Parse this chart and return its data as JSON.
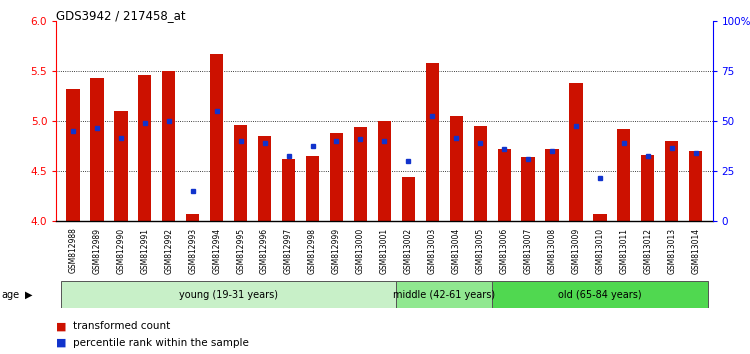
{
  "title": "GDS3942 / 217458_at",
  "samples": [
    "GSM812988",
    "GSM812989",
    "GSM812990",
    "GSM812991",
    "GSM812992",
    "GSM812993",
    "GSM812994",
    "GSM812995",
    "GSM812996",
    "GSM812997",
    "GSM812998",
    "GSM812999",
    "GSM813000",
    "GSM813001",
    "GSM813002",
    "GSM813003",
    "GSM813004",
    "GSM813005",
    "GSM813006",
    "GSM813007",
    "GSM813008",
    "GSM813009",
    "GSM813010",
    "GSM813011",
    "GSM813012",
    "GSM813013",
    "GSM813014"
  ],
  "red_values": [
    5.32,
    5.43,
    5.1,
    5.46,
    5.5,
    4.07,
    5.67,
    4.96,
    4.85,
    4.62,
    4.65,
    4.88,
    4.94,
    5.0,
    4.44,
    5.58,
    5.05,
    4.95,
    4.72,
    4.64,
    4.72,
    5.38,
    4.07,
    4.92,
    4.66,
    4.8,
    4.7
  ],
  "blue_values": [
    4.9,
    4.93,
    4.83,
    4.98,
    5.0,
    4.3,
    5.1,
    4.8,
    4.78,
    4.65,
    4.75,
    4.8,
    4.82,
    4.8,
    4.6,
    5.05,
    4.83,
    4.78,
    4.72,
    4.62,
    4.7,
    4.95,
    4.43,
    4.78,
    4.65,
    4.73,
    4.68
  ],
  "groups": [
    {
      "label": "young (19-31 years)",
      "start": 0,
      "end": 14,
      "color": "#c8f0c8"
    },
    {
      "label": "middle (42-61 years)",
      "start": 14,
      "end": 18,
      "color": "#90e890"
    },
    {
      "label": "old (65-84 years)",
      "start": 18,
      "end": 27,
      "color": "#50d850"
    }
  ],
  "ylim_left": [
    4.0,
    6.0
  ],
  "ylim_right": [
    0,
    100
  ],
  "yticks_left": [
    4.0,
    4.5,
    5.0,
    5.5,
    6.0
  ],
  "yticks_right": [
    0,
    25,
    50,
    75,
    100
  ],
  "ytick_labels_right": [
    "0",
    "25",
    "50",
    "75",
    "100%"
  ],
  "bar_color": "#cc1100",
  "dot_color": "#1133cc",
  "bar_width": 0.55,
  "baseline": 4.0,
  "age_label": "age",
  "legend_red": "transformed count",
  "legend_blue": "percentile rank within the sample",
  "bg_color": "#ffffff"
}
